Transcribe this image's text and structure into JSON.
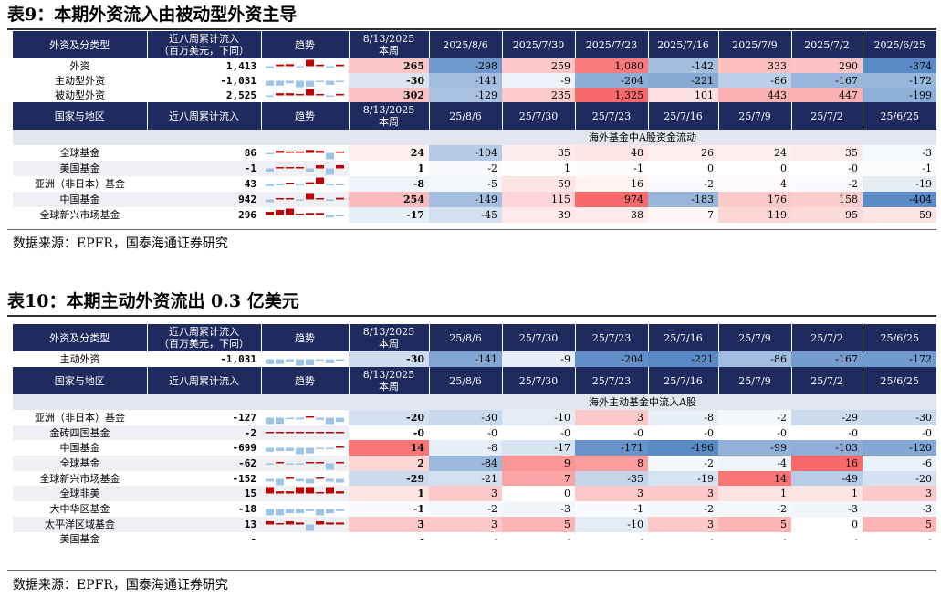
{
  "table9": {
    "title": "表9：本期外资流入由被动型外资主导",
    "source": "数据来源：EPFR，国泰海通证券研究",
    "header1": [
      "外资及分类型",
      "近八周累计流入\n（百万美元，下同）",
      "趋势",
      "8/13/2025\n本周",
      "2025/8/6",
      "2025/7/30",
      "2025/7/23",
      "2025/7/16",
      "2025/7/9",
      "2025/7/2",
      "2025/6/25"
    ],
    "rows1": [
      {
        "name": "外资",
        "cum": "1,413",
        "vals": [
          "265",
          "-298",
          "259",
          "1,080",
          "-142",
          "333",
          "290",
          "-374"
        ]
      },
      {
        "name": "主动型外资",
        "cum": "-1,031",
        "vals": [
          "-30",
          "-141",
          "-9",
          "-204",
          "-221",
          "-86",
          "-167",
          "-172"
        ]
      },
      {
        "name": "被动型外资",
        "cum": "2,525",
        "vals": [
          "302",
          "-129",
          "235",
          "1,325",
          "101",
          "443",
          "447",
          "-199"
        ]
      }
    ],
    "header2": [
      "国家与地区",
      "近八周累计流入",
      "趋势",
      "8/13/2025\n本周",
      "25/8/6",
      "25/7/30",
      "25/7/23",
      "25/7/16",
      "25/7/9",
      "25/7/2",
      "25/6/25"
    ],
    "subheader": "海外基金中A股资金流动",
    "rows2": [
      {
        "name": "全球基金",
        "cum": "86",
        "vals": [
          "24",
          "-104",
          "35",
          "48",
          "26",
          "24",
          "35",
          "-3"
        ]
      },
      {
        "name": "美国基金",
        "cum": "-1",
        "vals": [
          "1",
          "-2",
          "1",
          "-1",
          "0",
          "0",
          "-0",
          "-1"
        ]
      },
      {
        "name": "亚洲（非日本）基金",
        "cum": "43",
        "vals": [
          "-8",
          "-5",
          "59",
          "16",
          "-2",
          "4",
          "-2",
          "-19"
        ]
      },
      {
        "name": "中国基金",
        "cum": "942",
        "vals": [
          "254",
          "-149",
          "115",
          "974",
          "-183",
          "176",
          "158",
          "-404"
        ]
      },
      {
        "name": "全球新兴市场基金",
        "cum": "296",
        "vals": [
          "-17",
          "-45",
          "39",
          "38",
          "7",
          "119",
          "95",
          "59"
        ]
      }
    ]
  },
  "table10": {
    "title": "表10：本期主动外资流出 0.3 亿美元",
    "source": "数据来源：EPFR，国泰海通证券研究",
    "header1": [
      "外资及分类型",
      "近八周累计流入\n（百万美元，下同）",
      "趋势",
      "8/13/2025\n本周",
      "25/8/6",
      "25/7/30",
      "25/7/23",
      "25/7/16",
      "25/7/9",
      "25/7/2",
      "25/6/25"
    ],
    "rows1": [
      {
        "name": "主动外资",
        "cum": "-1,031",
        "vals": [
          "-30",
          "-141",
          "-9",
          "-204",
          "-221",
          "-86",
          "-167",
          "-172"
        ]
      }
    ],
    "header2": [
      "国家与地区",
      "近八周累计流入",
      "趋势",
      "8/13/2025\n本周",
      "25/8/6",
      "25/7/30",
      "25/7/23",
      "25/7/16",
      "25/7/9",
      "25/7/2",
      "25/6/25"
    ],
    "subheader": "海外主动基金中流入A股",
    "rows2": [
      {
        "name": "亚洲（非日本）基金",
        "cum": "-127",
        "vals": [
          "-20",
          "-30",
          "-10",
          "3",
          "-8",
          "-2",
          "-29",
          "-30"
        ]
      },
      {
        "name": "金砖四国基金",
        "cum": "-2",
        "vals": [
          "-0",
          "-0",
          "-0",
          "-0",
          "-0",
          "-0",
          "-0",
          "-0"
        ]
      },
      {
        "name": "中国基金",
        "cum": "-699",
        "vals": [
          "14",
          "-8",
          "-17",
          "-171",
          "-196",
          "-99",
          "-103",
          "-120"
        ]
      },
      {
        "name": "全球基金",
        "cum": "-62",
        "vals": [
          "2",
          "-84",
          "9",
          "8",
          "-2",
          "-4",
          "16",
          "-6"
        ]
      },
      {
        "name": "全球新兴市场基金",
        "cum": "-152",
        "vals": [
          "-29",
          "-21",
          "7",
          "-35",
          "-19",
          "14",
          "-49",
          "-20"
        ]
      },
      {
        "name": "全球非美",
        "cum": "15",
        "vals": [
          "1",
          "3",
          "0",
          "3",
          "3",
          "1",
          "1",
          "3"
        ]
      },
      {
        "name": "大中华区基金",
        "cum": "-18",
        "vals": [
          "-1",
          "-2",
          "-3",
          "-1",
          "-2",
          "-2",
          "-3",
          "-3"
        ]
      },
      {
        "name": "太平洋区域基金",
        "cum": "13",
        "vals": [
          "3",
          "3",
          "5",
          "-10",
          "3",
          "5",
          "0",
          "5"
        ]
      },
      {
        "name": "美国基金",
        "cum": "-",
        "vals": [
          "-",
          "-",
          "-",
          "-",
          "-",
          "-",
          "-",
          "-"
        ]
      }
    ]
  },
  "colors": {
    "header_bg": "#1f2a5e",
    "pos_strong": "#f8696b",
    "neg_strong": "#5a8ac6",
    "neutral": "#ffffff",
    "spark_pos": "#c00000",
    "spark_neg": "#9dc3e6"
  }
}
